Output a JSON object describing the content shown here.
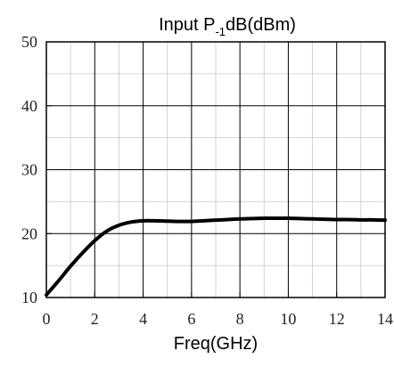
{
  "chart_data": {
    "type": "line",
    "title": "Input P",
    "title_subscript": "-1",
    "title_suffix": "dB(dBm)",
    "xlabel": "Freq(GHz)",
    "ylabel": "",
    "xlim": [
      0,
      14
    ],
    "ylim": [
      10,
      50
    ],
    "x_ticks": [
      "0",
      "2",
      "4",
      "6",
      "8",
      "10",
      "12",
      "14"
    ],
    "y_ticks": [
      "10",
      "20",
      "30",
      "40",
      "50"
    ],
    "grid": true,
    "series": [
      {
        "x": [
          0,
          0.5,
          1,
          1.5,
          2,
          2.5,
          3,
          3.5,
          4,
          4.5,
          5,
          5.5,
          6,
          6.5,
          7,
          7.5,
          8,
          8.5,
          9,
          9.5,
          10,
          10.5,
          11,
          11.5,
          12,
          12.5,
          13,
          13.5,
          14
        ],
        "values": [
          10.4,
          12.6,
          14.9,
          17.0,
          18.9,
          20.4,
          21.3,
          21.8,
          22.0,
          22.0,
          21.95,
          21.9,
          21.9,
          22.0,
          22.1,
          22.2,
          22.3,
          22.35,
          22.4,
          22.4,
          22.4,
          22.35,
          22.3,
          22.25,
          22.2,
          22.2,
          22.15,
          22.15,
          22.1
        ],
        "color": "#000000"
      }
    ]
  }
}
